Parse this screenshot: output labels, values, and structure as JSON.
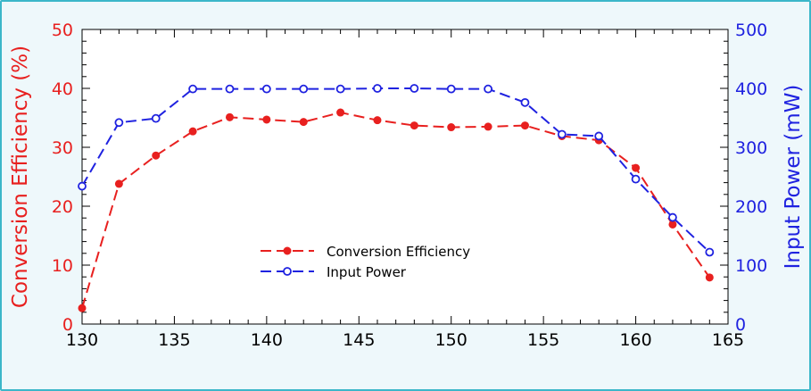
{
  "chart_data": {
    "type": "line",
    "x": [
      130,
      132,
      134,
      136,
      138,
      140,
      142,
      144,
      146,
      148,
      150,
      152,
      154,
      156,
      158,
      160,
      162,
      164
    ],
    "series": [
      {
        "name": "Conversion Efficiency",
        "axis": "left",
        "color": "#e8201f",
        "marker": "filled-circle",
        "line_style": "dashed",
        "values": [
          2.7,
          23.8,
          28.6,
          32.7,
          35.1,
          34.7,
          34.3,
          35.9,
          34.6,
          33.7,
          33.4,
          33.5,
          33.7,
          31.9,
          31.2,
          26.5,
          16.9,
          7.9
        ]
      },
      {
        "name": "Input Power",
        "axis": "right",
        "color": "#1f22e0",
        "marker": "open-circle",
        "line_style": "dashed",
        "values": [
          234,
          342,
          349,
          399,
          399,
          399,
          399,
          399,
          400,
          400,
          399,
          399,
          376,
          322,
          319,
          246,
          181,
          122
        ]
      }
    ],
    "xlim": [
      130,
      165
    ],
    "x_ticks": [
      "130",
      "135",
      "140",
      "145",
      "150",
      "155",
      "160",
      "165"
    ],
    "ylabel_left": "Conversion Efficiency (%)",
    "ylim_left": [
      0,
      50
    ],
    "y_ticks_left": [
      "0",
      "10",
      "20",
      "30",
      "40",
      "50"
    ],
    "ylabel_right": "Input Power (mW)",
    "ylim_right": [
      0,
      500
    ],
    "y_ticks_right": [
      "0",
      "100",
      "200",
      "300",
      "400",
      "500"
    ],
    "legend": {
      "placement": "center",
      "entries": [
        "Conversion Efficiency",
        "Input Power"
      ]
    },
    "left_color": "#e8201f",
    "right_color": "#1f22e0",
    "background": "#eef8fb",
    "border_color": "#3bb7c9",
    "grid": false
  }
}
